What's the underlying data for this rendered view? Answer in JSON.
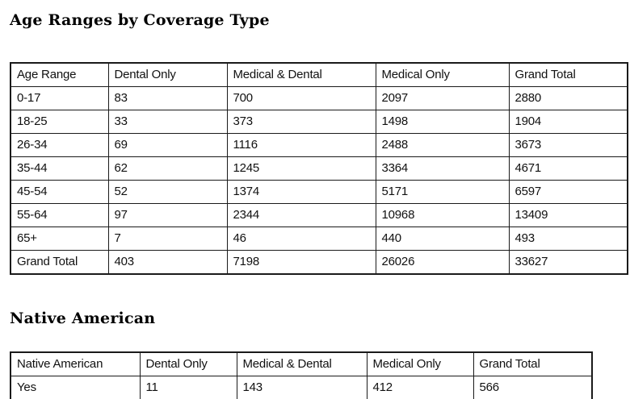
{
  "colors": {
    "border": "#1a1a1a",
    "text": "#111111",
    "background": "#ffffff"
  },
  "chart_data": [
    {
      "type": "table",
      "title": "Age Ranges by Coverage Type",
      "columns": [
        "Age Range",
        "Dental Only",
        "Medical & Dental",
        "Medical Only",
        "Grand Total"
      ],
      "rows": [
        [
          "0-17",
          "83",
          "700",
          "2097",
          "2880"
        ],
        [
          "18-25",
          "33",
          "373",
          "1498",
          "1904"
        ],
        [
          "26-34",
          "69",
          "1116",
          "2488",
          "3673"
        ],
        [
          "35-44",
          "62",
          "1245",
          "3364",
          "4671"
        ],
        [
          "45-54",
          "52",
          "1374",
          "5171",
          "6597"
        ],
        [
          "55-64",
          "97",
          "2344",
          "10968",
          "13409"
        ],
        [
          "65+",
          "7",
          "46",
          "440",
          "493"
        ],
        [
          "Grand Total",
          "403",
          "7198",
          "26026",
          "33627"
        ]
      ]
    },
    {
      "type": "table",
      "title": "Native American",
      "columns": [
        "Native American",
        "Dental Only",
        "Medical & Dental",
        "Medical Only",
        "Grand Total"
      ],
      "rows": [
        [
          "Yes",
          "11",
          "143",
          "412",
          "566"
        ]
      ]
    }
  ]
}
